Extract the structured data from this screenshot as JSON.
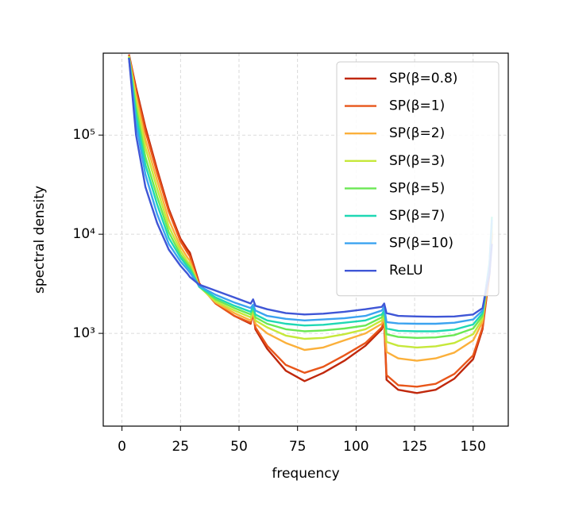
{
  "chart_data": {
    "type": "line",
    "xlabel": "frequency",
    "ylabel": "spectral density",
    "xlim": [
      -8,
      165
    ],
    "ylim": [
      116,
      670000
    ],
    "yscale": "log",
    "xticks": [
      0,
      25,
      50,
      75,
      100,
      125,
      150
    ],
    "yticks": [
      {
        "value": 1000,
        "label": "10³"
      },
      {
        "value": 10000,
        "label": "10⁴"
      },
      {
        "value": 100000,
        "label": "10⁵"
      }
    ],
    "grid": true,
    "legend": "upper right",
    "x": [
      3,
      6,
      10,
      15,
      20,
      25,
      28,
      29,
      33,
      40,
      48,
      55,
      56,
      57,
      62,
      70,
      78,
      86,
      95,
      104,
      111,
      112,
      113,
      118,
      126,
      134,
      142,
      150,
      154,
      157,
      158
    ],
    "series": [
      {
        "name": "SP(β=0.8)",
        "color": "#c0280c",
        "values": [
          650000,
          300000,
          120000,
          45000,
          18000,
          9000,
          7000,
          6500,
          3200,
          2000,
          1500,
          1250,
          1600,
          1100,
          700,
          420,
          330,
          400,
          530,
          750,
          1100,
          1300,
          340,
          270,
          250,
          270,
          350,
          550,
          1100,
          4000,
          10000
        ]
      },
      {
        "name": "SP(β=1)",
        "color": "#e8561a",
        "values": [
          640000,
          280000,
          110000,
          42000,
          17000,
          8500,
          6500,
          6000,
          3100,
          2000,
          1500,
          1280,
          1600,
          1150,
          750,
          480,
          400,
          460,
          600,
          800,
          1150,
          1350,
          380,
          300,
          290,
          310,
          390,
          600,
          1150,
          4200,
          10500
        ]
      },
      {
        "name": "SP(β=2)",
        "color": "#fbb03b",
        "values": [
          630000,
          250000,
          90000,
          35000,
          14000,
          7500,
          5800,
          5400,
          3000,
          2050,
          1600,
          1350,
          1650,
          1250,
          1000,
          800,
          680,
          720,
          850,
          1000,
          1250,
          1450,
          650,
          560,
          530,
          560,
          640,
          850,
          1300,
          4500,
          11000
        ]
      },
      {
        "name": "SP(β=3)",
        "color": "#c6e83a",
        "values": [
          620000,
          220000,
          75000,
          29000,
          12000,
          6800,
          5300,
          5000,
          2950,
          2100,
          1700,
          1450,
          1700,
          1350,
          1150,
          950,
          880,
          900,
          980,
          1100,
          1350,
          1550,
          820,
          750,
          720,
          740,
          800,
          980,
          1400,
          4800,
          12000
        ]
      },
      {
        "name": "SP(β=5)",
        "color": "#6be854",
        "values": [
          610000,
          190000,
          60000,
          24000,
          10500,
          6200,
          5000,
          4700,
          2950,
          2200,
          1800,
          1550,
          1800,
          1450,
          1250,
          1100,
          1050,
          1070,
          1120,
          1200,
          1450,
          1650,
          980,
          920,
          900,
          910,
          960,
          1120,
          1500,
          5000,
          13000
        ]
      },
      {
        "name": "SP(β=7)",
        "color": "#1fd8b4",
        "values": [
          600000,
          160000,
          50000,
          20000,
          9200,
          5800,
          4700,
          4400,
          2950,
          2300,
          1900,
          1650,
          1850,
          1550,
          1350,
          1250,
          1200,
          1220,
          1280,
          1350,
          1550,
          1700,
          1120,
          1060,
          1050,
          1050,
          1090,
          1230,
          1600,
          5200,
          15000
        ]
      },
      {
        "name": "SP(β=10)",
        "color": "#3ba3f0",
        "values": [
          600000,
          130000,
          40000,
          16000,
          8000,
          5300,
          4400,
          4100,
          3000,
          2450,
          2050,
          1800,
          1950,
          1700,
          1500,
          1400,
          1350,
          1380,
          1420,
          1500,
          1700,
          1850,
          1300,
          1260,
          1250,
          1250,
          1280,
          1380,
          1700,
          5000,
          14000
        ]
      },
      {
        "name": "ReLU",
        "color": "#3f56d6",
        "values": [
          600000,
          100000,
          30000,
          13000,
          7000,
          4800,
          4000,
          3700,
          3100,
          2700,
          2300,
          2000,
          2200,
          1900,
          1750,
          1600,
          1550,
          1580,
          1650,
          1750,
          1850,
          2000,
          1600,
          1500,
          1480,
          1470,
          1480,
          1550,
          1800,
          4000,
          8000
        ]
      }
    ]
  }
}
